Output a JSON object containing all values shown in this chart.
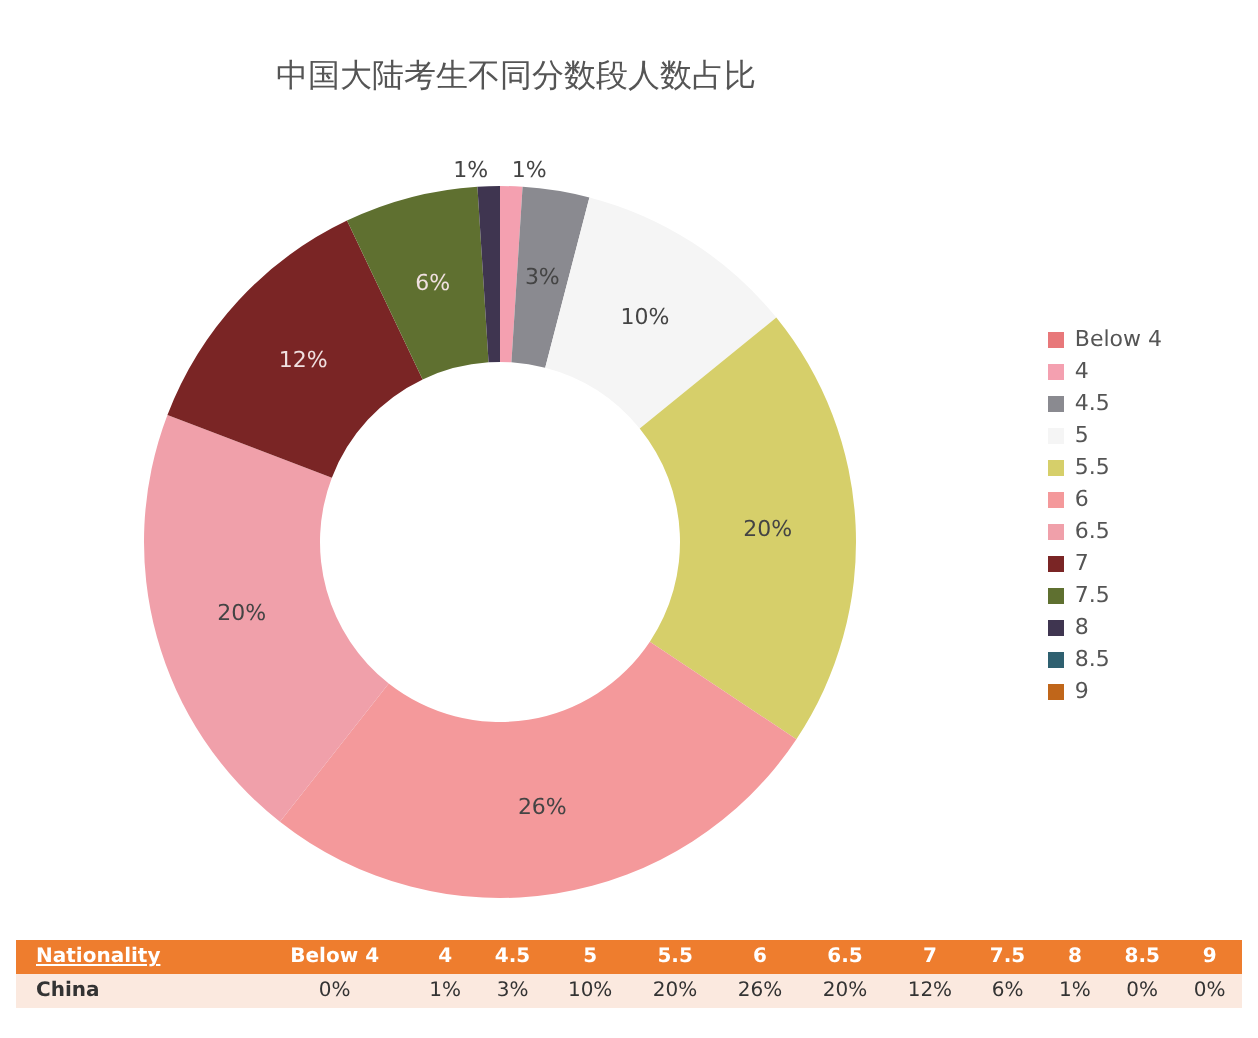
{
  "chart_data": {
    "type": "donut",
    "title": "中国大陆考生不同分数段人数占比",
    "categories": [
      "Below 4",
      "4",
      "4.5",
      "5",
      "5.5",
      "6",
      "6.5",
      "7",
      "7.5",
      "8",
      "8.5",
      "9"
    ],
    "values": [
      0,
      1,
      3,
      10,
      20,
      26,
      20,
      12,
      6,
      1,
      0,
      0
    ],
    "value_labels": [
      "0%",
      "1%",
      "3%",
      "10%",
      "20%",
      "26%",
      "20%",
      "12%",
      "6%",
      "1%",
      "0%",
      "0%"
    ],
    "colors": [
      "#e8787a",
      "#f4a0b0",
      "#8a8a90",
      "#f5f5f5",
      "#d6cf6a",
      "#f4999b",
      "#f0a0aa",
      "#7a2525",
      "#5f7030",
      "#3f3550",
      "#2f6070",
      "#c0661a"
    ],
    "legend": "right",
    "annotations": [
      "Nationality",
      "China"
    ]
  }
}
